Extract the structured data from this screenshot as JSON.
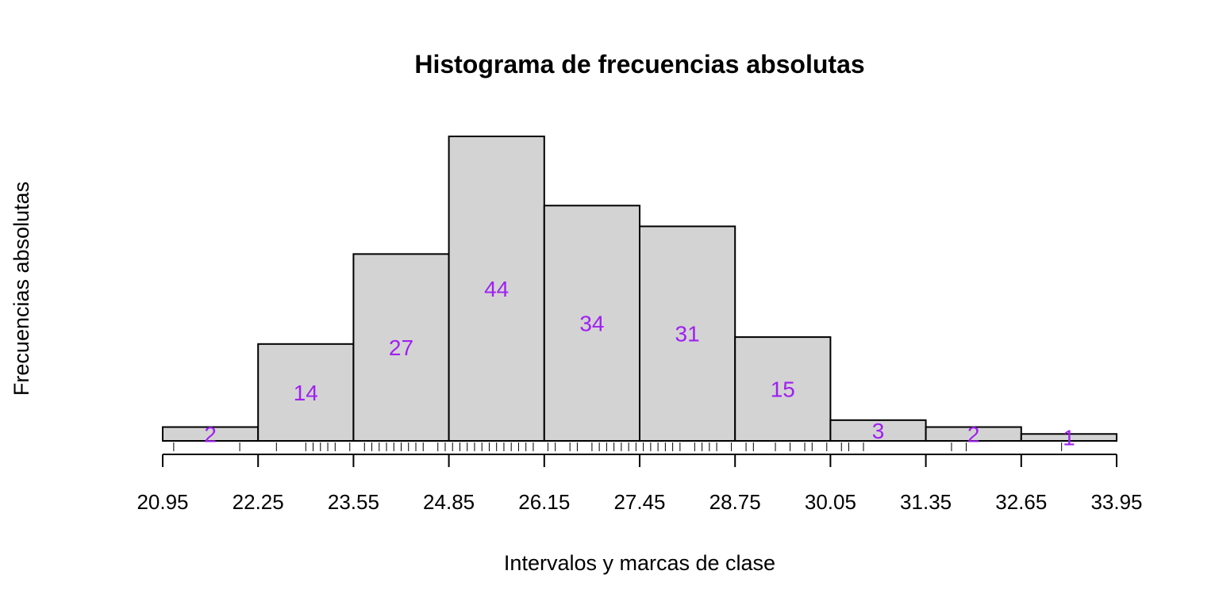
{
  "chart_data": {
    "type": "bar",
    "title": "Histograma de frecuencias absolutas",
    "xlabel": "Intervalos y marcas de clase",
    "ylabel": "Frecuencias absolutas",
    "breaks": [
      20.95,
      22.25,
      23.55,
      24.85,
      26.15,
      27.45,
      28.75,
      30.05,
      31.35,
      32.65,
      33.95
    ],
    "tick_labels": [
      "20.95",
      "22.25",
      "23.55",
      "24.85",
      "26.15",
      "27.45",
      "28.75",
      "30.05",
      "31.35",
      "32.65",
      "33.95"
    ],
    "values": [
      2,
      14,
      27,
      44,
      34,
      31,
      15,
      3,
      2,
      1
    ],
    "value_labels": [
      "2",
      "14",
      "27",
      "44",
      "34",
      "31",
      "15",
      "3",
      "2",
      "1"
    ],
    "xlim": [
      20.95,
      33.95
    ],
    "ylim": [
      0,
      44
    ],
    "grid": false,
    "rug": [
      21.1,
      22.0,
      22.5,
      22.9,
      23.0,
      23.1,
      23.2,
      23.3,
      23.5,
      23.7,
      23.8,
      23.9,
      24.0,
      24.1,
      24.2,
      24.3,
      24.4,
      24.5,
      24.7,
      24.8,
      24.9,
      25.0,
      25.1,
      25.2,
      25.3,
      25.4,
      25.5,
      25.6,
      25.7,
      25.8,
      25.9,
      26.0,
      26.2,
      26.3,
      26.5,
      26.6,
      26.8,
      26.9,
      27.0,
      27.1,
      27.2,
      27.3,
      27.4,
      27.5,
      27.6,
      27.7,
      27.8,
      27.9,
      28.0,
      28.2,
      28.3,
      28.4,
      28.5,
      28.7,
      28.9,
      29.0,
      29.3,
      29.5,
      29.7,
      29.8,
      30.0,
      30.2,
      30.3,
      30.5,
      31.7,
      31.9,
      33.2
    ],
    "colors": {
      "bar_fill": "#d3d3d3",
      "bar_stroke": "#000000",
      "value_label": "#a020f0"
    }
  }
}
